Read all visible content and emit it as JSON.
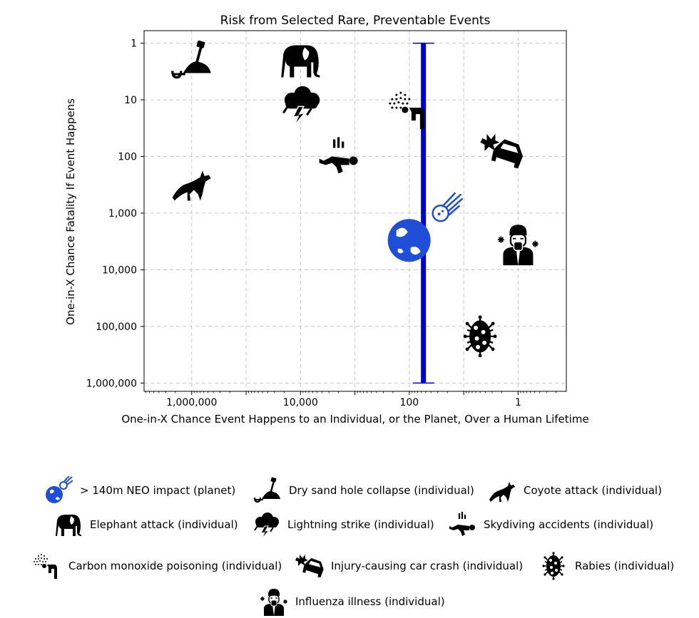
{
  "chart_data": {
    "type": "scatter",
    "title": "Risk from Selected Rare, Preventable Events",
    "xlabel": "One-in-X Chance Event Happens to an Individual, or the Planet, Over a Human Lifetime",
    "ylabel": "One-in-X Chance Fatality If Event Happens",
    "x_scale": "log-reversed",
    "y_scale": "log-reversed",
    "xlim": [
      7500000,
      0.13
    ],
    "ylim": [
      0.6,
      1400000
    ],
    "x_ticks": [
      1000000,
      10000,
      100,
      1
    ],
    "x_tick_labels": [
      "1,000,000",
      "10,000",
      "100",
      "1"
    ],
    "y_ticks": [
      1,
      10,
      100,
      1000,
      10000,
      100000,
      1000000
    ],
    "y_tick_labels": [
      "1",
      "10",
      "100",
      "1,000",
      "10,000",
      "100,000",
      "1,000,000"
    ],
    "grid": true,
    "range_bar": {
      "x": 55,
      "y_from": 1,
      "y_to": 1000000,
      "color": "#0000cc"
    },
    "series": [
      {
        "name": "> 140m NEO impact (planet)",
        "icon": "meteor-earth-icon",
        "x": 55,
        "y": 3400
      },
      {
        "name": "Dry sand hole collapse (individual)",
        "icon": "sand-hole-icon",
        "x": 1000000,
        "y": 2
      },
      {
        "name": "Coyote attack (individual)",
        "icon": "coyote-icon",
        "x": 1000000,
        "y": 300
      },
      {
        "name": "Elephant attack (individual)",
        "icon": "elephant-icon",
        "x": 10000,
        "y": 2
      },
      {
        "name": "Lightning strike (individual)",
        "icon": "lightning-cloud-icon",
        "x": 10000,
        "y": 12
      },
      {
        "name": "Skydiving accidents (individual)",
        "icon": "skydiver-icon",
        "x": 2000,
        "y": 100
      },
      {
        "name": "Carbon monoxide poisoning (individual)",
        "icon": "carbon-monoxide-icon",
        "x": 100,
        "y": 15
      },
      {
        "name": "Injury-causing car crash (individual)",
        "icon": "car-crash-icon",
        "x": 2,
        "y": 80
      },
      {
        "name": "Rabies (individual)",
        "icon": "virus-icon",
        "x": 5,
        "y": 150000
      },
      {
        "name": "Influenza illness (individual)",
        "icon": "flu-person-icon",
        "x": 1,
        "y": 3500
      }
    ]
  },
  "legend": {
    "items": [
      {
        "label": "> 140m NEO impact (planet)",
        "icon": "meteor-earth-icon"
      },
      {
        "label": "Dry sand hole collapse (individual)",
        "icon": "sand-hole-icon"
      },
      {
        "label": "Coyote attack (individual)",
        "icon": "coyote-icon"
      },
      {
        "label": "Elephant attack (individual)",
        "icon": "elephant-icon"
      },
      {
        "label": "Lightning strike (individual)",
        "icon": "lightning-cloud-icon"
      },
      {
        "label": "Skydiving accidents (individual)",
        "icon": "skydiver-icon"
      },
      {
        "label": "Carbon monoxide poisoning (individual)",
        "icon": "carbon-monoxide-icon"
      },
      {
        "label": "Injury-causing car crash (individual)",
        "icon": "car-crash-icon"
      },
      {
        "label": "Rabies (individual)",
        "icon": "virus-icon"
      },
      {
        "label": "Influenza illness (individual)",
        "icon": "flu-person-icon"
      }
    ]
  }
}
